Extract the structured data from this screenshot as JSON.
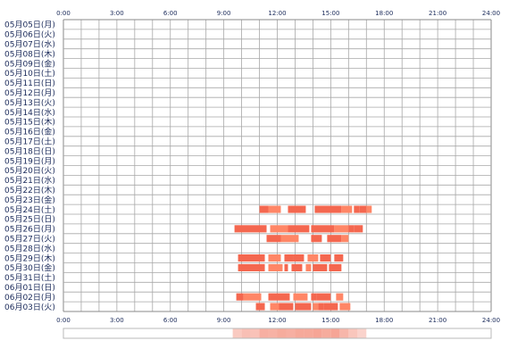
{
  "chart_data": {
    "type": "timeline",
    "x_ticks": [
      "0:00",
      "3:00",
      "6:00",
      "9:00",
      "12:00",
      "15:00",
      "18:00",
      "21:00",
      "24:00"
    ],
    "x_range": [
      0,
      24
    ],
    "grid": true,
    "rows": [
      "05月05日(月)",
      "05月06日(火)",
      "05月07日(水)",
      "05月08日(木)",
      "05月09日(金)",
      "05月10日(土)",
      "05月11日(日)",
      "05月12日(月)",
      "05月13日(火)",
      "05月14日(水)",
      "05月15日(木)",
      "05月16日(金)",
      "05月17日(土)",
      "05月18日(日)",
      "05月19日(月)",
      "05月20日(火)",
      "05月21日(水)",
      "05月22日(木)",
      "05月23日(金)",
      "05月24日(土)",
      "05月25日(日)",
      "05月26日(月)",
      "05月27日(火)",
      "05月28日(水)",
      "05月29日(木)",
      "05月30日(金)",
      "05月31日(土)",
      "06月01日(日)",
      "06月02日(月)",
      "06月03日(火)"
    ],
    "activity": [
      {
        "row": 19,
        "segments": [
          [
            11.0,
            11.5
          ],
          [
            11.5,
            12.2
          ],
          [
            12.6,
            13.6
          ],
          [
            14.1,
            15.6
          ],
          [
            15.6,
            16.2
          ],
          [
            16.3,
            16.6
          ],
          [
            16.6,
            17.0
          ],
          [
            17.0,
            17.3
          ]
        ]
      },
      {
        "row": 21,
        "segments": [
          [
            9.6,
            11.4
          ],
          [
            11.6,
            12.6
          ],
          [
            12.6,
            13.8
          ],
          [
            13.9,
            15.2
          ],
          [
            15.2,
            16.0
          ],
          [
            16.0,
            16.3
          ],
          [
            16.3,
            16.8
          ]
        ]
      },
      {
        "row": 22,
        "segments": [
          [
            11.4,
            12.2
          ],
          [
            12.2,
            13.2
          ],
          [
            13.9,
            14.5
          ],
          [
            14.8,
            15.6
          ],
          [
            15.6,
            16.0
          ]
        ]
      },
      {
        "row": 24,
        "segments": [
          [
            9.8,
            11.3
          ],
          [
            11.5,
            12.2
          ],
          [
            12.4,
            12.9
          ],
          [
            12.9,
            13.5
          ],
          [
            13.7,
            14.3
          ],
          [
            14.4,
            15.0
          ],
          [
            15.2,
            15.7
          ]
        ]
      },
      {
        "row": 25,
        "segments": [
          [
            9.8,
            11.3
          ],
          [
            11.5,
            12.3
          ],
          [
            12.4,
            12.6
          ],
          [
            12.8,
            13.4
          ],
          [
            13.6,
            13.9
          ],
          [
            14.0,
            14.8
          ],
          [
            14.9,
            15.6
          ]
        ]
      },
      {
        "row": 28,
        "segments": [
          [
            9.7,
            10.1
          ],
          [
            10.1,
            11.1
          ],
          [
            11.5,
            12.1
          ],
          [
            12.1,
            12.7
          ],
          [
            12.9,
            13.7
          ],
          [
            13.9,
            14.2
          ],
          [
            14.2,
            15.0
          ],
          [
            15.3,
            15.7
          ]
        ]
      },
      {
        "row": 29,
        "segments": [
          [
            10.8,
            11.3
          ],
          [
            11.6,
            12.1
          ],
          [
            12.1,
            12.9
          ],
          [
            13.0,
            13.9
          ],
          [
            14.0,
            14.3
          ],
          [
            14.3,
            14.6
          ],
          [
            14.6,
            15.4
          ],
          [
            15.5,
            16.1
          ]
        ]
      }
    ],
    "summary_strip": [
      {
        "hour": 9.5,
        "intensity": 0.45
      },
      {
        "hour": 10.0,
        "intensity": 0.6
      },
      {
        "hour": 10.5,
        "intensity": 0.55
      },
      {
        "hour": 11.0,
        "intensity": 0.85
      },
      {
        "hour": 11.5,
        "intensity": 0.8
      },
      {
        "hour": 12.0,
        "intensity": 0.9
      },
      {
        "hour": 12.5,
        "intensity": 0.85
      },
      {
        "hour": 13.0,
        "intensity": 0.95
      },
      {
        "hour": 13.5,
        "intensity": 0.95
      },
      {
        "hour": 14.0,
        "intensity": 1.0
      },
      {
        "hour": 14.5,
        "intensity": 0.9
      },
      {
        "hour": 15.0,
        "intensity": 1.0
      },
      {
        "hour": 15.5,
        "intensity": 0.75
      },
      {
        "hour": 16.0,
        "intensity": 0.5
      },
      {
        "hour": 16.5,
        "intensity": 0.3
      }
    ],
    "colors": {
      "bar": "#f4674f",
      "bar_alt": "#ff8666",
      "grid": "#a8a8a8",
      "border": "#8a8a8a",
      "label": "#1a2a5a",
      "strip_base": "#fbe9e0",
      "strip_peak": "#f5a090"
    }
  }
}
